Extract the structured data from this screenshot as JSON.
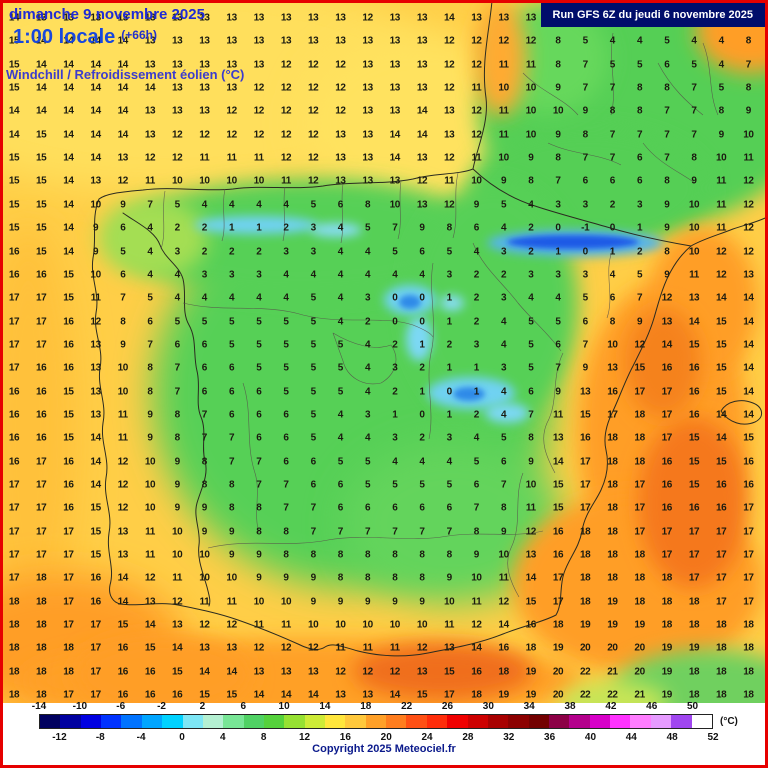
{
  "header": {
    "date_line": "dimanche 9 novembre 2025",
    "time_line": "1:00 locale",
    "time_offset": "(+66h)",
    "variable_label": "Windchill / Refroidissement éolien (°C)",
    "run_label": "Run GFS 6Z du jeudi 6 novembre 2025"
  },
  "footer": {
    "copyright": "Copyright 2025 Meteociel.fr"
  },
  "colorbar": {
    "unit_label": "(°C)",
    "top_labels": [
      "-14",
      "-10",
      "-6",
      "-2",
      "2",
      "6",
      "10",
      "14",
      "18",
      "22",
      "26",
      "30",
      "34",
      "38",
      "42",
      "46",
      "50"
    ],
    "bottom_labels": [
      "-12",
      "-8",
      "-4",
      "0",
      "4",
      "8",
      "12",
      "16",
      "20",
      "24",
      "28",
      "32",
      "36",
      "40",
      "44",
      "48",
      "52"
    ],
    "segment_colors": [
      "#00005f",
      "#0000a0",
      "#0000e1",
      "#0032ff",
      "#0073ff",
      "#00a5ff",
      "#00d2ff",
      "#7de6f5",
      "#b4f0d2",
      "#78e696",
      "#50d264",
      "#55d23c",
      "#96e132",
      "#cdeb37",
      "#ffe63c",
      "#ffc83c",
      "#ffa028",
      "#ff7d1e",
      "#ff5014",
      "#ff2d0a",
      "#f00000",
      "#cd0000",
      "#a80000",
      "#8c0000",
      "#730000",
      "#8c0046",
      "#b4008c",
      "#d700c8",
      "#ff32ff",
      "#ff7dff",
      "#e69bff",
      "#a046f0",
      "#ffffff"
    ]
  },
  "map": {
    "values_grid": {
      "rows": [
        "14 13 13 13 13 13 13 13 13 13 13 13 13 12 13 13 14 13 13 13 13 13 13 13 13 13 14 13",
        "15 14 14 14 14 13 13 13 13 13 13 13 13 13 13 13 12 12 12 12 8 5 4 4 5 4 4 8",
        "15 14 14 14 14 13 13 13 13 13 12 12 12 13 13 13 12 12 11 11 8 7 5 5 6 5 4 7",
        "15 14 14 14 14 14 13 13 13 12 12 12 12 13 13 13 12 11 10 10 9 7 7 8 8 7 5 8",
        "14 14 14 14 14 13 13 13 12 12 12 12 12 13 13 14 13 12 11 10 10 9 8 8 7 7 8 9",
        "14 15 14 14 14 13 12 12 12 12 12 12 13 13 14 14 13 12 11 10 9 8 7 7 7 7 9 10",
        "15 15 14 14 13 12 12 11 11 11 12 12 13 13 14 13 12 11 10 9 8 7 7 6 7 8 10 11",
        "15 15 14 13 12 11 10 10 10 10 11 12 13 13 13 12 11 10 9 8 7 6 6 6 8 9 11 12",
        "15 15 14 10 9 7 5 4 4 4 4 5 6 8 10 13 12 9 5 4 3 3 2 3 9 10 11 12",
        "15 15 14 9 6 4 2 2 1 1 2 3 4 5 7 9 8 6 4 2 0 -1 0 1 9 10 11 12",
        "16 15 14 9 5 4 3 2 2 2 3 3 4 4 5 6 5 4 3 2 1 0 1 2 8 10 12 12",
        "16 16 15 10 6 4 4 3 3 3 4 4 4 4 4 4 3 2 2 3 3 3 4 5 9 11 12 13",
        "17 17 15 11 7 5 4 4 4 4 4 5 4 3 0 0 1 2 3 4 4 5 6 7 12 13 14 14",
        "17 17 16 12 8 6 5 5 5 5 5 5 4 2 0 0 1 2 4 5 5 6 8 9 13 14 15 14",
        "17 17 16 13 9 7 6 6 5 5 5 5 5 4 2 1 2 3 4 5 6 7 10 12 14 15 15 14",
        "17 16 16 13 10 8 7 6 6 5 5 5 5 4 3 2 1 1 3 5 7 9 13 15 16 16 15 14",
        "16 16 15 13 10 8 7 6 6 6 5 5 5 4 2 1 0 1 4 6 9 13 16 17 17 16 15 14",
        "16 16 15 13 11 9 8 7 6 6 6 5 4 3 1 0 1 2 4 7 11 15 17 18 17 16 14 14",
        "16 16 15 14 11 9 8 7 7 6 6 5 4 4 3 2 3 4 5 8 13 16 18 18 17 15 14 15",
        "16 17 16 14 12 10 9 8 7 7 6 6 5 5 4 4 4 5 6 9 14 17 18 18 16 15 15 16",
        "17 17 16 14 12 10 9 8 8 7 7 6 6 5 5 5 5 6 7 10 15 17 18 17 16 15 16 16",
        "17 17 16 15 12 10 9 9 8 8 7 7 6 6 6 6 6 7 8 11 15 17 18 17 16 16 16 17",
        "17 17 17 15 13 11 10 9 9 8 8 7 7 7 7 7 7 8 9 12 16 18 18 17 17 17 17 17",
        "17 17 17 15 13 11 10 10 9 9 8 8 8 8 8 8 8 9 10 13 16 18 18 18 17 17 17 17",
        "17 18 17 16 14 12 11 10 10 9 9 9 8 8 8 8 9 10 11 14 17 18 18 18 18 17 17 17",
        "18 18 17 16 14 13 12 11 11 10 10 9 9 9 9 9 10 11 12 15 17 18 19 18 18 18 17 17",
        "18 18 17 17 15 14 13 12 12 11 11 10 10 10 10 10 11 12 14 16 18 19 19 19 18 18 18 18",
        "18 18 18 17 16 15 14 13 13 12 12 12 11 11 11 12 13 14 16 18 19 20 20 20 19 19 18 18",
        "18 18 18 17 16 16 15 14 14 13 13 13 12 12 12 13 15 16 18 19 20 22 21 20 19 18 18 18",
        "18 18 17 17 16 16 16 15 15 14 14 14 13 13 14 15 17 18 19 19 20 22 22 21 19 18 18 18"
      ]
    }
  }
}
